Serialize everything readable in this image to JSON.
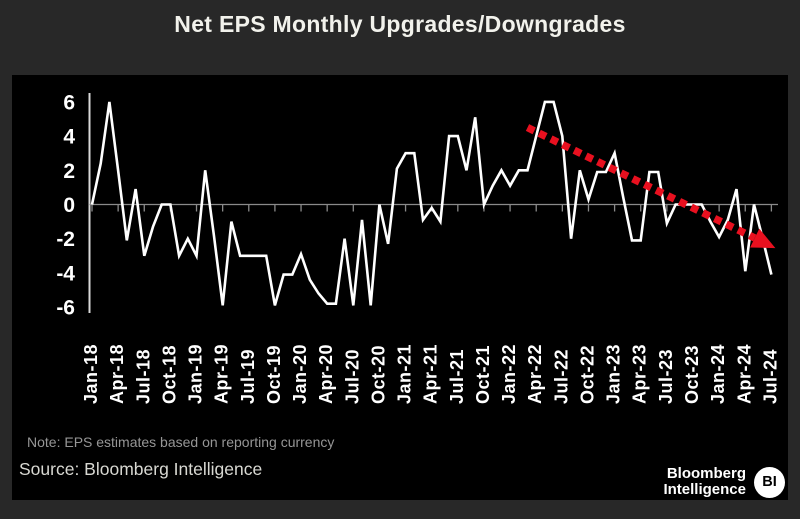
{
  "title": "Net EPS Monthly Upgrades/Downgrades",
  "note": "Note: EPS estimates based on reporting currency",
  "source": "Source: Bloomberg Intelligence",
  "logo": {
    "line1": "Bloomberg",
    "line2": "Intelligence",
    "badge": "BI"
  },
  "colors": {
    "background": "#282828",
    "panel": "#000000",
    "series_line": "#ffffff",
    "trend_red": "#e8101f",
    "axis_gray": "#8a8a8a",
    "yaxis_line": "#d9d9d9",
    "title_text": "#f2f2ec",
    "note_text": "#969696",
    "source_text": "#d8d8d2",
    "label_text": "#ffffff"
  },
  "chart_data": {
    "type": "line",
    "title": "Net EPS Monthly Upgrades/Downgrades",
    "xlabel": "",
    "ylabel": "",
    "ylim": [
      -6.5,
      6.5
    ],
    "yticks": [
      6,
      4,
      2,
      0,
      -2,
      -4,
      -6
    ],
    "x_tick_step": 3,
    "grid": false,
    "legend": "none",
    "x": [
      "Jan-18",
      "Feb-18",
      "Mar-18",
      "Apr-18",
      "May-18",
      "Jun-18",
      "Jul-18",
      "Aug-18",
      "Sep-18",
      "Oct-18",
      "Nov-18",
      "Dec-18",
      "Jan-19",
      "Feb-19",
      "Mar-19",
      "Apr-19",
      "May-19",
      "Jun-19",
      "Jul-19",
      "Aug-19",
      "Sep-19",
      "Oct-19",
      "Nov-19",
      "Dec-19",
      "Jan-20",
      "Feb-20",
      "Mar-20",
      "Apr-20",
      "May-20",
      "Jun-20",
      "Jul-20",
      "Aug-20",
      "Sep-20",
      "Oct-20",
      "Nov-20",
      "Dec-20",
      "Jan-21",
      "Feb-21",
      "Mar-21",
      "Apr-21",
      "May-21",
      "Jun-21",
      "Jul-21",
      "Aug-21",
      "Sep-21",
      "Oct-21",
      "Nov-21",
      "Dec-21",
      "Jan-22",
      "Feb-22",
      "Mar-22",
      "Apr-22",
      "May-22",
      "Jun-22",
      "Jul-22",
      "Aug-22",
      "Sep-22",
      "Oct-22",
      "Nov-22",
      "Dec-22",
      "Jan-23",
      "Feb-23",
      "Mar-23",
      "Apr-23",
      "May-23",
      "Jun-23",
      "Jul-23",
      "Aug-23",
      "Sep-23",
      "Oct-23",
      "Nov-23",
      "Dec-23",
      "Jan-24",
      "Feb-24",
      "Mar-24",
      "Apr-24",
      "May-24",
      "Jun-24",
      "Jul-24"
    ],
    "values": [
      0,
      2.4,
      6,
      2,
      -2.1,
      0.9,
      -3,
      -1.3,
      0,
      0,
      -3,
      -2,
      -3,
      2,
      -1.8,
      -5.9,
      -1,
      -3,
      -3,
      -3,
      -3,
      -5.9,
      -4.1,
      -4.1,
      -2.9,
      -4.4,
      -5.2,
      -5.8,
      -5.8,
      -2,
      -5.9,
      -0.9,
      -5.9,
      0,
      -2.3,
      2.1,
      3,
      3,
      -0.9,
      -0.2,
      -1,
      4,
      4,
      2,
      5.1,
      0,
      1.1,
      2,
      1.1,
      2,
      2,
      4,
      6,
      6,
      4,
      -2,
      2,
      0.3,
      1.9,
      1.9,
      3,
      0.4,
      -2.1,
      -2.1,
      1.9,
      1.9,
      -1.1,
      0,
      0,
      0,
      0,
      -1,
      -1.9,
      -0.9,
      0.9,
      -3.9,
      0,
      -2,
      -4.1
    ],
    "trend": {
      "style": "dotted-arrow",
      "color": "#e8101f",
      "start_month": "Mar-22",
      "start_value": 4.5,
      "end_month": "Jul-24",
      "end_value": -2.55
    }
  }
}
